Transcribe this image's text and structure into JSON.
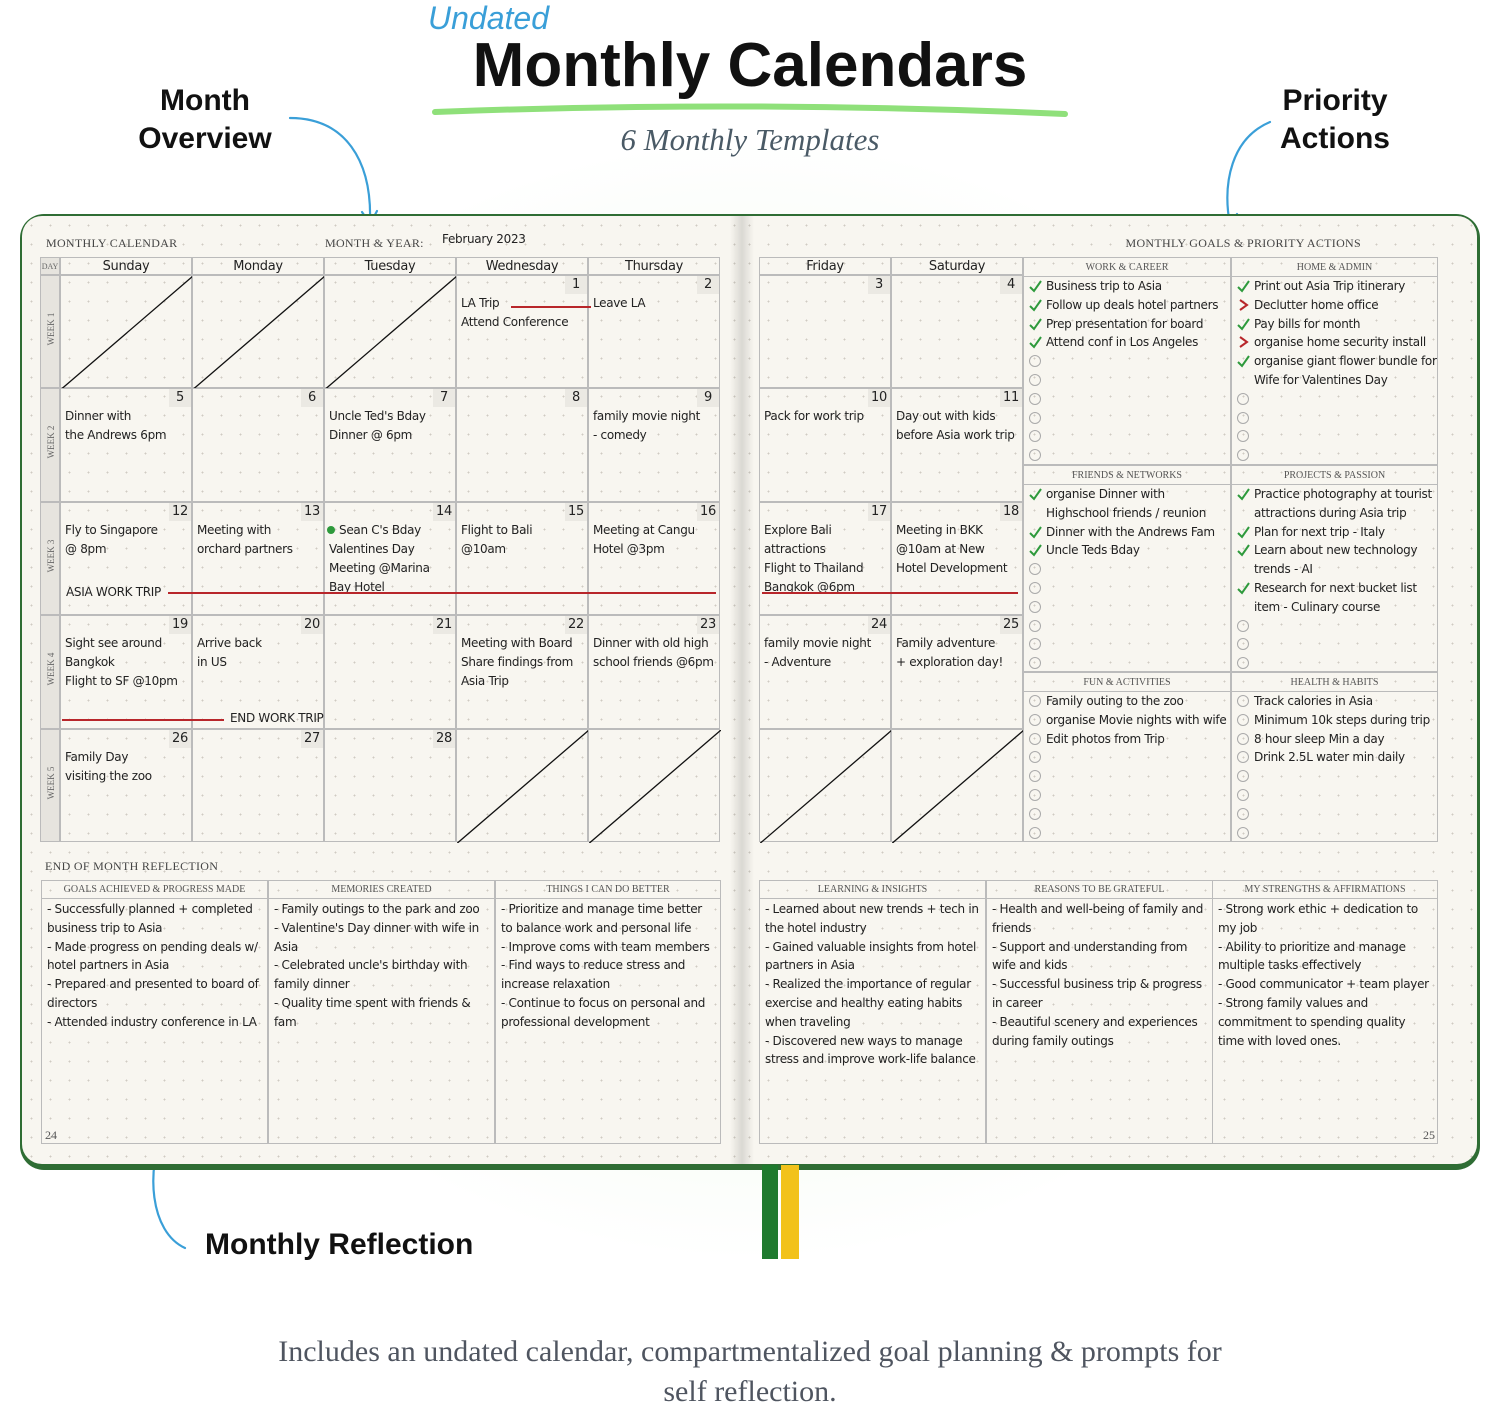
{
  "header": {
    "tag": "Undated",
    "title": "Monthly Calendars",
    "subtitle": "6 Monthly Templates"
  },
  "callouts": [
    "Month Overview",
    "Priority Actions",
    "Monthly Reflection"
  ],
  "footer": "Includes an undated calendar, compartmentalized goal planning & prompts for self reflection.",
  "left_page": {
    "label": "MONTHLY CALENDAR",
    "month_label": "MONTH & YEAR:",
    "month_value": "February 2023",
    "page_number": "24"
  },
  "right_page": {
    "label": "MONTHLY GOALS & PRIORITY ACTIONS",
    "page_number": "25"
  },
  "calendar": {
    "day_label": "DAY",
    "days": [
      "Sunday",
      "Monday",
      "Tuesday",
      "Wednesday",
      "Thursday",
      "Friday",
      "Saturday"
    ],
    "weeks": [
      {
        "label": "WEEK 1",
        "cells": [
          null,
          null,
          null,
          {
            "day": "1",
            "lines": [
              "LA Trip",
              "Attend Conference"
            ]
          },
          {
            "day": "2",
            "lines": [
              "Leave LA"
            ]
          },
          {
            "day": "3"
          },
          {
            "day": "4"
          }
        ]
      },
      {
        "label": "WEEK 2",
        "cells": [
          {
            "day": "5",
            "lines": [
              "Dinner with",
              "the Andrews 6pm"
            ]
          },
          {
            "day": "6"
          },
          {
            "day": "7",
            "lines": [
              "Uncle Ted's Bday",
              "Dinner @ 6pm"
            ]
          },
          {
            "day": "8"
          },
          {
            "day": "9",
            "lines": [
              "family movie night",
              "- comedy"
            ]
          },
          {
            "day": "10",
            "lines": [
              "Pack for work trip"
            ]
          },
          {
            "day": "11",
            "lines": [
              "Day out with kids",
              "before Asia work trip"
            ]
          }
        ]
      },
      {
        "label": "WEEK 3",
        "banner": "ASIA WORK TRIP",
        "cells": [
          {
            "day": "12",
            "lines": [
              "Fly to Singapore",
              "@ 8pm"
            ]
          },
          {
            "day": "13",
            "lines": [
              "Meeting with",
              "orchard partners"
            ]
          },
          {
            "day": "14",
            "dot_color": "#2e9a3c",
            "lines": [
              "Sean C's Bday",
              "Valentines Day",
              "Meeting @Marina",
              "Bay Hotel"
            ]
          },
          {
            "day": "15",
            "lines": [
              "Flight to Bali",
              "@10am"
            ]
          },
          {
            "day": "16",
            "lines": [
              "Meeting at Cangu",
              "Hotel @3pm"
            ]
          },
          {
            "day": "17",
            "lines": [
              "Explore Bali",
              "attractions",
              "Flight to Thailand",
              "Bangkok @6pm"
            ]
          },
          {
            "day": "18",
            "lines": [
              "Meeting in BKK",
              "@10am at New",
              "Hotel Development"
            ]
          }
        ]
      },
      {
        "label": "WEEK 4",
        "banner": "END WORK TRIP",
        "cells": [
          {
            "day": "19",
            "lines": [
              "Sight see around",
              "Bangkok",
              "Flight to SF @10pm"
            ]
          },
          {
            "day": "20",
            "lines": [
              "Arrive back",
              "in US"
            ]
          },
          {
            "day": "21"
          },
          {
            "day": "22",
            "lines": [
              "Meeting with Board",
              "Share findings from",
              "Asia Trip"
            ]
          },
          {
            "day": "23",
            "lines": [
              "Dinner with old high",
              "school friends @6pm"
            ]
          },
          {
            "day": "24",
            "lines": [
              "family movie night",
              "- Adventure"
            ]
          },
          {
            "day": "25",
            "lines": [
              "Family adventure",
              "+ exploration day!"
            ]
          }
        ]
      },
      {
        "label": "WEEK 5",
        "cells": [
          {
            "day": "26",
            "lines": [
              "Family Day",
              "visiting the zoo"
            ]
          },
          {
            "day": "27"
          },
          {
            "day": "28"
          },
          null,
          null,
          null,
          null
        ]
      }
    ]
  },
  "goals": [
    {
      "title": "WORK & CAREER",
      "items": [
        {
          "text": "Business trip to Asia",
          "status": "done"
        },
        {
          "text": "Follow up deals hotel partners",
          "status": "done"
        },
        {
          "text": "Prep presentation for board",
          "status": "done"
        },
        {
          "text": "Attend conf in Los Angeles",
          "status": "done"
        }
      ]
    },
    {
      "title": "HOME & ADMIN",
      "items": [
        {
          "text": "Print out Asia Trip itinerary",
          "status": "done"
        },
        {
          "text": "Declutter home office",
          "status": "moved"
        },
        {
          "text": "Pay bills for month",
          "status": "done"
        },
        {
          "text": "organise home security install",
          "status": "moved"
        },
        {
          "text": "organise giant flower bundle for Wife for Valentines Day",
          "status": "done"
        }
      ]
    },
    {
      "title": "FRIENDS & NETWORKS",
      "items": [
        {
          "text": "organise Dinner with Highschool friends / reunion",
          "status": "done"
        },
        {
          "text": "Dinner with the Andrews Fam",
          "status": "done"
        },
        {
          "text": "Uncle Teds Bday",
          "status": "done"
        }
      ]
    },
    {
      "title": "PROJECTS & PASSION",
      "items": [
        {
          "text": "Practice photography at tourist attractions during Asia trip",
          "status": "done"
        },
        {
          "text": "Plan for next trip - Italy",
          "status": "done"
        },
        {
          "text": "Learn about new technology trends - AI",
          "status": "done"
        },
        {
          "text": "Research for next bucket list item - Culinary course",
          "status": "done"
        }
      ]
    },
    {
      "title": "FUN & ACTIVITIES",
      "items": [
        {
          "text": "Family outing to the zoo",
          "status": "open"
        },
        {
          "text": "organise Movie nights with wife",
          "status": "open"
        },
        {
          "text": "Edit photos from Trip",
          "status": "open"
        }
      ]
    },
    {
      "title": "HEALTH & HABITS",
      "items": [
        {
          "text": "Track calories in Asia",
          "status": "open"
        },
        {
          "text": "Minimum 10k steps during trip",
          "status": "open"
        },
        {
          "text": "8 hour sleep Min a day",
          "status": "open"
        },
        {
          "text": "Drink 2.5L water min daily",
          "status": "open"
        }
      ]
    }
  ],
  "reflection": {
    "title": "END OF MONTH REFLECTION",
    "boxes": [
      {
        "title": "GOALS ACHIEVED & PROGRESS MADE",
        "items": [
          "- Successfully planned + completed business trip to Asia",
          "- Made progress on pending deals w/ hotel partners in Asia",
          "- Prepared and presented to board of directors",
          "- Attended industry conference in LA"
        ]
      },
      {
        "title": "MEMORIES CREATED",
        "items": [
          "- Family outings to the park and zoo",
          "- Valentine's Day dinner with wife in Asia",
          "- Celebrated uncle's birthday with family dinner",
          "- Quality time spent with friends & fam"
        ]
      },
      {
        "title": "THINGS I CAN DO BETTER",
        "items": [
          "- Prioritize and manage time better to balance work and personal life",
          "- Improve coms with team members",
          "- Find ways to reduce stress and increase relaxation",
          "- Continue to focus on personal and professional development"
        ]
      },
      {
        "title": "LEARNING & INSIGHTS",
        "items": [
          "- Learned about new trends + tech in the hotel industry",
          "- Gained valuable insights from hotel partners in Asia",
          "- Realized the importance of regular exercise and healthy eating habits when traveling",
          "- Discovered new ways to manage stress and improve work-life balance"
        ]
      },
      {
        "title": "REASONS TO BE GRATEFUL",
        "items": [
          "- Health and well-being of family and friends",
          "- Support and understanding from wife and kids",
          "- Successful business trip & progress in career",
          "- Beautiful scenery and experiences during family outings"
        ]
      },
      {
        "title": "MY STRENGTHS & AFFIRMATIONS",
        "items": [
          "- Strong work ethic + dedication to my job",
          "- Ability to prioritize and manage multiple tasks effectively",
          "- Good communicator + team player",
          "- Strong family values and commitment to spending quality time with loved ones."
        ]
      }
    ]
  }
}
